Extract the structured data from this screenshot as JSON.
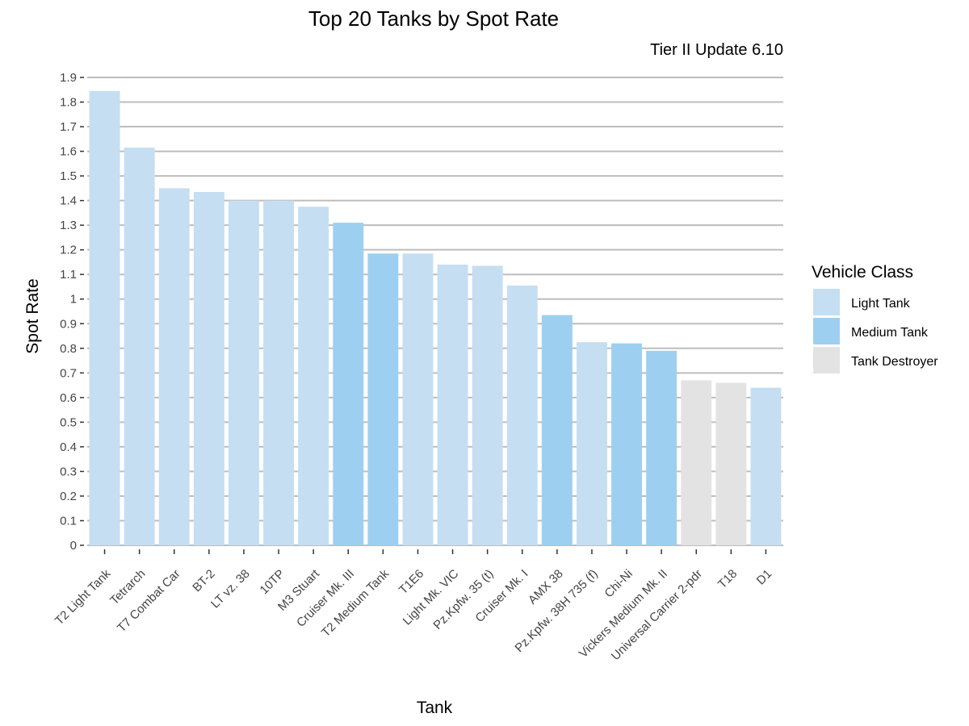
{
  "chart_data": {
    "type": "bar",
    "title": "Top 20 Tanks by Spot Rate",
    "subtitle": "Tier II Update 6.10",
    "xlabel": "Tank",
    "ylabel": "Spot Rate",
    "ylim": [
      0,
      1.9
    ],
    "y_ticks": [
      "0",
      "0.1",
      "0.2",
      "0.3",
      "0.4",
      "0.5",
      "0.6",
      "0.7",
      "0.8",
      "0.9",
      "1",
      "1.1",
      "1.2",
      "1.3",
      "1.4",
      "1.5",
      "1.6",
      "1.7",
      "1.8",
      "1.9"
    ],
    "grid": "horizontal",
    "legend": {
      "title": "Vehicle Class",
      "position": "right",
      "entries": [
        {
          "label": "Light Tank",
          "color": "#c6def2"
        },
        {
          "label": "Medium Tank",
          "color": "#9dd0f0"
        },
        {
          "label": "Tank Destroyer",
          "color": "#e3e3e3"
        }
      ]
    },
    "categories": [
      "T2 Light Tank",
      "Tetrarch",
      "T7 Combat Car",
      "BT-2",
      "LT vz. 38",
      "10TP",
      "M3 Stuart",
      "Cruiser Mk. III",
      "T2 Medium Tank",
      "T1E6",
      "Light Mk. VIC",
      "Pz.Kpfw. 35 (t)",
      "Cruiser Mk. I",
      "AMX 38",
      "Pz.Kpfw. 38H 735 (f)",
      "Chi-Ni",
      "Vickers Medium Mk. II",
      "Universal Carrier 2-pdr",
      "T18",
      "D1"
    ],
    "values": [
      1.845,
      1.615,
      1.45,
      1.435,
      1.4,
      1.4,
      1.375,
      1.31,
      1.185,
      1.185,
      1.14,
      1.135,
      1.055,
      0.935,
      0.825,
      0.82,
      0.79,
      0.67,
      0.66,
      0.64
    ],
    "classes": [
      "Light Tank",
      "Light Tank",
      "Light Tank",
      "Light Tank",
      "Light Tank",
      "Light Tank",
      "Light Tank",
      "Medium Tank",
      "Medium Tank",
      "Light Tank",
      "Light Tank",
      "Light Tank",
      "Light Tank",
      "Medium Tank",
      "Light Tank",
      "Medium Tank",
      "Medium Tank",
      "Tank Destroyer",
      "Tank Destroyer",
      "Light Tank"
    ]
  }
}
